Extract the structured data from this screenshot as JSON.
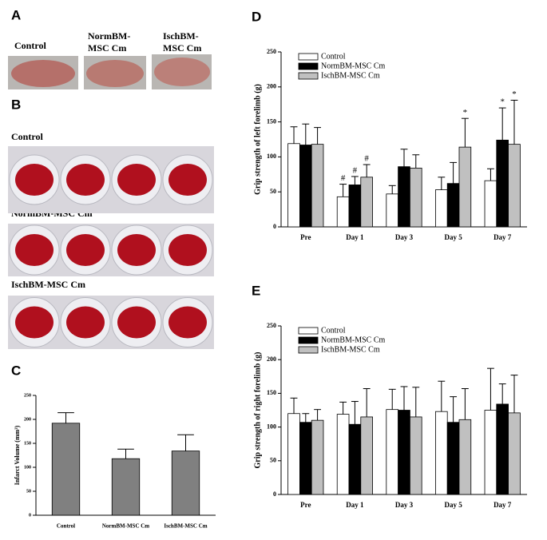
{
  "panel_a": {
    "label": "A",
    "captions": [
      [
        "Control"
      ],
      [
        "NormBM-",
        "MSC Cm"
      ],
      [
        "IschBM-",
        "MSC Cm"
      ]
    ]
  },
  "panel_b": {
    "label": "B",
    "rows": [
      "Control",
      "NormBM-MSC Cm",
      "IschBM-MSC Cm"
    ]
  },
  "chart_data": [
    {
      "type": "bar",
      "panel_label": "C",
      "y_label": "Infarct Volume (mm³)",
      "categories": [
        "Control",
        "NormBM-MSC Cm",
        "IschBM-MSC Cm"
      ],
      "values": [
        192,
        118,
        134
      ],
      "errors": [
        22,
        20,
        34
      ],
      "color": "#808080",
      "ylim": [
        0,
        250
      ],
      "yticks": [
        0,
        50,
        100,
        150,
        200,
        250
      ]
    },
    {
      "type": "bar",
      "panel_label": "D",
      "y_label": "Grip strength of left forelimb (g)",
      "categories": [
        "Pre",
        "Day 1",
        "Day 3",
        "Day 5",
        "Day 7"
      ],
      "series": [
        {
          "name": "Control",
          "color": "#ffffff",
          "values": [
            119,
            43,
            47,
            53,
            66
          ],
          "errors": [
            24,
            18,
            12,
            18,
            17
          ],
          "markers": [
            null,
            "#",
            null,
            null,
            null
          ]
        },
        {
          "name": "NormBM-MSC Cm",
          "color": "#000000",
          "values": [
            117,
            60,
            86,
            62,
            124
          ],
          "errors": [
            30,
            12,
            25,
            30,
            46
          ],
          "markers": [
            null,
            "#",
            null,
            null,
            "*"
          ]
        },
        {
          "name": "IschBM-MSC Cm",
          "color": "#c0c0c0",
          "values": [
            118,
            71,
            84,
            114,
            118
          ],
          "errors": [
            24,
            18,
            19,
            41,
            63
          ],
          "markers": [
            null,
            "#",
            null,
            "*",
            "*"
          ]
        }
      ],
      "ylim": [
        0,
        250
      ],
      "yticks": [
        0,
        50,
        100,
        150,
        200,
        250
      ],
      "legend": "upper-left"
    },
    {
      "type": "bar",
      "panel_label": "E",
      "y_label": "Grip strength of right forelimb (g)",
      "categories": [
        "Pre",
        "Day 1",
        "Day 3",
        "Day 5",
        "Day 7"
      ],
      "series": [
        {
          "name": "Control",
          "color": "#ffffff",
          "values": [
            120,
            119,
            126,
            123,
            125
          ],
          "errors": [
            23,
            18,
            30,
            45,
            62
          ]
        },
        {
          "name": "NormBM-MSC Cm",
          "color": "#000000",
          "values": [
            107,
            104,
            125,
            107,
            134
          ],
          "errors": [
            13,
            34,
            35,
            38,
            30
          ]
        },
        {
          "name": "IschBM-MSC Cm",
          "color": "#c0c0c0",
          "values": [
            110,
            115,
            115,
            111,
            121
          ],
          "errors": [
            16,
            42,
            44,
            46,
            56
          ]
        }
      ],
      "ylim": [
        0,
        250
      ],
      "yticks": [
        0,
        50,
        100,
        150,
        200,
        250
      ],
      "legend": "upper-left"
    }
  ]
}
